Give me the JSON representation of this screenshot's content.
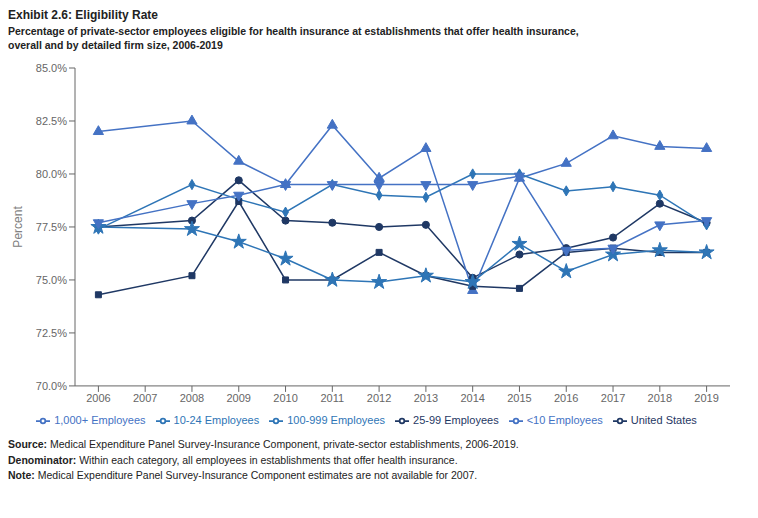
{
  "chart_data": {
    "type": "line",
    "title": "Exhibit 2.6: Eligibility Rate",
    "subtitle": "Percentage of private-sector employees eligible for health insurance at establishments that offer health insurance,\noverall and by detailed firm size, 2006-2019",
    "ylabel": "Percent",
    "x": [
      2006,
      2007,
      2008,
      2009,
      2010,
      2011,
      2012,
      2013,
      2014,
      2015,
      2016,
      2017,
      2018,
      2019
    ],
    "xlim": [
      2005.5,
      2019.5
    ],
    "xticks": [
      2006,
      2007,
      2008,
      2009,
      2010,
      2011,
      2012,
      2013,
      2014,
      2015,
      2016,
      2017,
      2018,
      2019
    ],
    "ylim": [
      70.0,
      85.0
    ],
    "yticks": [
      {
        "value": 70.0,
        "label": "70.0%"
      },
      {
        "value": 72.5,
        "label": "72.5%"
      },
      {
        "value": 75.0,
        "label": "75.0%"
      },
      {
        "value": 77.5,
        "label": "77.5%"
      },
      {
        "value": 80.0,
        "label": "80.0%"
      },
      {
        "value": 82.5,
        "label": "82.5%"
      },
      {
        "value": 85.0,
        "label": "85.0%"
      }
    ],
    "grid": false,
    "legend": "bottom",
    "series": [
      {
        "name": "United States",
        "color": "#1f3864",
        "marker": "circle",
        "values": [
          77.5,
          null,
          77.8,
          79.7,
          77.8,
          77.7,
          77.5,
          77.6,
          75.1,
          76.2,
          76.5,
          77.0,
          78.6,
          77.7
        ]
      },
      {
        "name": "<10 Employees",
        "color": "#4472c4",
        "marker": "triangle",
        "values": [
          82.0,
          null,
          82.5,
          80.6,
          79.5,
          82.3,
          79.8,
          81.2,
          74.5,
          79.8,
          80.5,
          81.8,
          81.3,
          81.2
        ]
      },
      {
        "name": "10-24 Employees",
        "color": "#2e75b6",
        "marker": "diamond",
        "values": [
          77.4,
          null,
          79.5,
          78.8,
          78.2,
          79.5,
          79.0,
          78.9,
          80.0,
          80.0,
          79.2,
          79.4,
          79.0,
          77.6
        ]
      },
      {
        "name": "25-99 Employees",
        "color": "#1f3864",
        "marker": "square",
        "values": [
          74.3,
          null,
          75.2,
          78.7,
          75.0,
          75.0,
          76.3,
          75.2,
          74.7,
          74.6,
          76.3,
          76.5,
          76.3,
          76.3
        ]
      },
      {
        "name": "100-999 Employees",
        "color": "#2e75b6",
        "marker": "star",
        "values": [
          77.5,
          null,
          77.4,
          76.8,
          76.0,
          75.0,
          74.9,
          75.2,
          74.9,
          76.7,
          75.4,
          76.2,
          76.4,
          76.3
        ]
      },
      {
        "name": "1,000+ Employees",
        "color": "#4472c4",
        "marker": "triangle-down",
        "values": [
          77.7,
          null,
          78.6,
          79.0,
          79.5,
          79.5,
          79.5,
          79.5,
          79.5,
          79.9,
          76.4,
          76.5,
          77.6,
          77.8
        ]
      }
    ],
    "annotations": [
      {
        "label": "Source:",
        "text": " Medical Expenditure Panel Survey-Insurance Component, private-sector establishments, 2006-2019."
      },
      {
        "label": "Denominator:",
        "text": " Within each category, all employees in establishments that offer health insurance."
      },
      {
        "label": "Note:",
        "text": " Medical Expenditure Panel Survey-Insurance Component estimates are not available for 2007."
      }
    ]
  }
}
